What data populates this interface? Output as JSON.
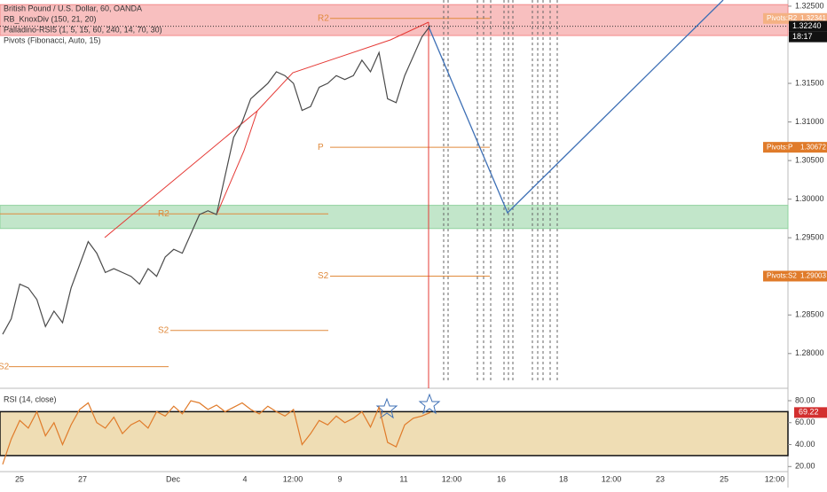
{
  "header": {
    "symbol": "British Pound / U.S. Dollar, 60, OANDA",
    "indicators": [
      "RB_KnoxDiv (150, 21, 20)",
      "Palladino-RSI5 (1, 5, 15, 60, 240, 14, 70, 30)",
      "Pivots (Fibonacci, Auto, 15)"
    ]
  },
  "chart_data": [
    {
      "type": "line",
      "color": "#4a4a4a",
      "values": [
        1.2825,
        1.2845,
        1.289,
        1.2885,
        1.287,
        1.2835,
        1.2855,
        1.284,
        1.2885,
        1.2915,
        1.2945,
        1.293,
        1.2905,
        1.291,
        1.2905,
        1.29,
        1.289,
        1.291,
        1.29,
        1.2925,
        1.2935,
        1.293,
        1.2955,
        1.298,
        1.2985,
        1.298,
        1.303,
        1.308,
        1.31,
        1.313,
        1.314,
        1.315,
        1.3165,
        1.316,
        1.315,
        1.3115,
        1.312,
        1.3145,
        1.315,
        1.316,
        1.3155,
        1.316,
        1.318,
        1.3165,
        1.319,
        1.313,
        1.3125,
        1.316,
        1.3185,
        1.321,
        1.3225
      ],
      "ylim": [
        1.2755,
        1.3258
      ],
      "yticks": [
        {
          "value": 1.325,
          "label": "1.32500"
        },
        {
          "value": 1.315,
          "label": "1.31500"
        },
        {
          "value": 1.31,
          "label": "1.31000"
        },
        {
          "value": 1.305,
          "label": "1.30500"
        },
        {
          "value": 1.3,
          "label": "1.30000"
        },
        {
          "value": 1.295,
          "label": "1.29500"
        },
        {
          "value": 1.285,
          "label": "1.28500"
        },
        {
          "value": 1.28,
          "label": "1.28000"
        }
      ],
      "zones": [
        {
          "range": [
            1.3212,
            1.3252
          ],
          "color": "#f28b8b"
        },
        {
          "range": [
            1.2962,
            1.2992
          ],
          "color": "#8fd19e"
        }
      ],
      "pivots": [
        {
          "name": "R2",
          "value": 1.32341,
          "tag": "Pivots:R2"
        },
        {
          "name": "P",
          "value": 1.30672,
          "tag": "Pivots:P"
        },
        {
          "name": "S2",
          "value": 1.29003,
          "tag": "Pivots:S2"
        }
      ],
      "old_pivots": [
        {
          "name": "R2",
          "value": 1.2981
        },
        {
          "name": "S2",
          "value": 1.283
        },
        {
          "name": "S2",
          "value": 1.2783
        }
      ],
      "last_price": {
        "value": 1.3224,
        "label": "1.32240"
      },
      "countdown": "18:17",
      "x_labels": [
        "25",
        "27",
        "Dec",
        "4",
        "12:00",
        "9",
        "11",
        "12:00",
        "16",
        "18",
        "12:00",
        "23",
        "25",
        "12:00"
      ]
    },
    {
      "type": "line",
      "title": "RSI (14, close)",
      "color": "#e07b2a",
      "values": [
        22,
        45,
        62,
        55,
        70,
        48,
        60,
        40,
        58,
        72,
        78,
        60,
        55,
        65,
        50,
        58,
        62,
        55,
        70,
        66,
        75,
        68,
        80,
        78,
        72,
        76,
        70,
        74,
        78,
        72,
        68,
        75,
        70,
        66,
        72,
        40,
        50,
        62,
        58,
        66,
        60,
        64,
        70,
        56,
        74,
        42,
        38,
        58,
        64,
        66,
        69.22
      ],
      "ylim": [
        17,
        89.7
      ],
      "yticks": [
        {
          "value": 80,
          "label": "80.00"
        },
        {
          "value": 60,
          "label": "60.00"
        },
        {
          "value": 40,
          "label": "40.00"
        },
        {
          "value": 20,
          "label": "20.00"
        }
      ],
      "band": [
        30,
        70
      ]
    }
  ]
}
